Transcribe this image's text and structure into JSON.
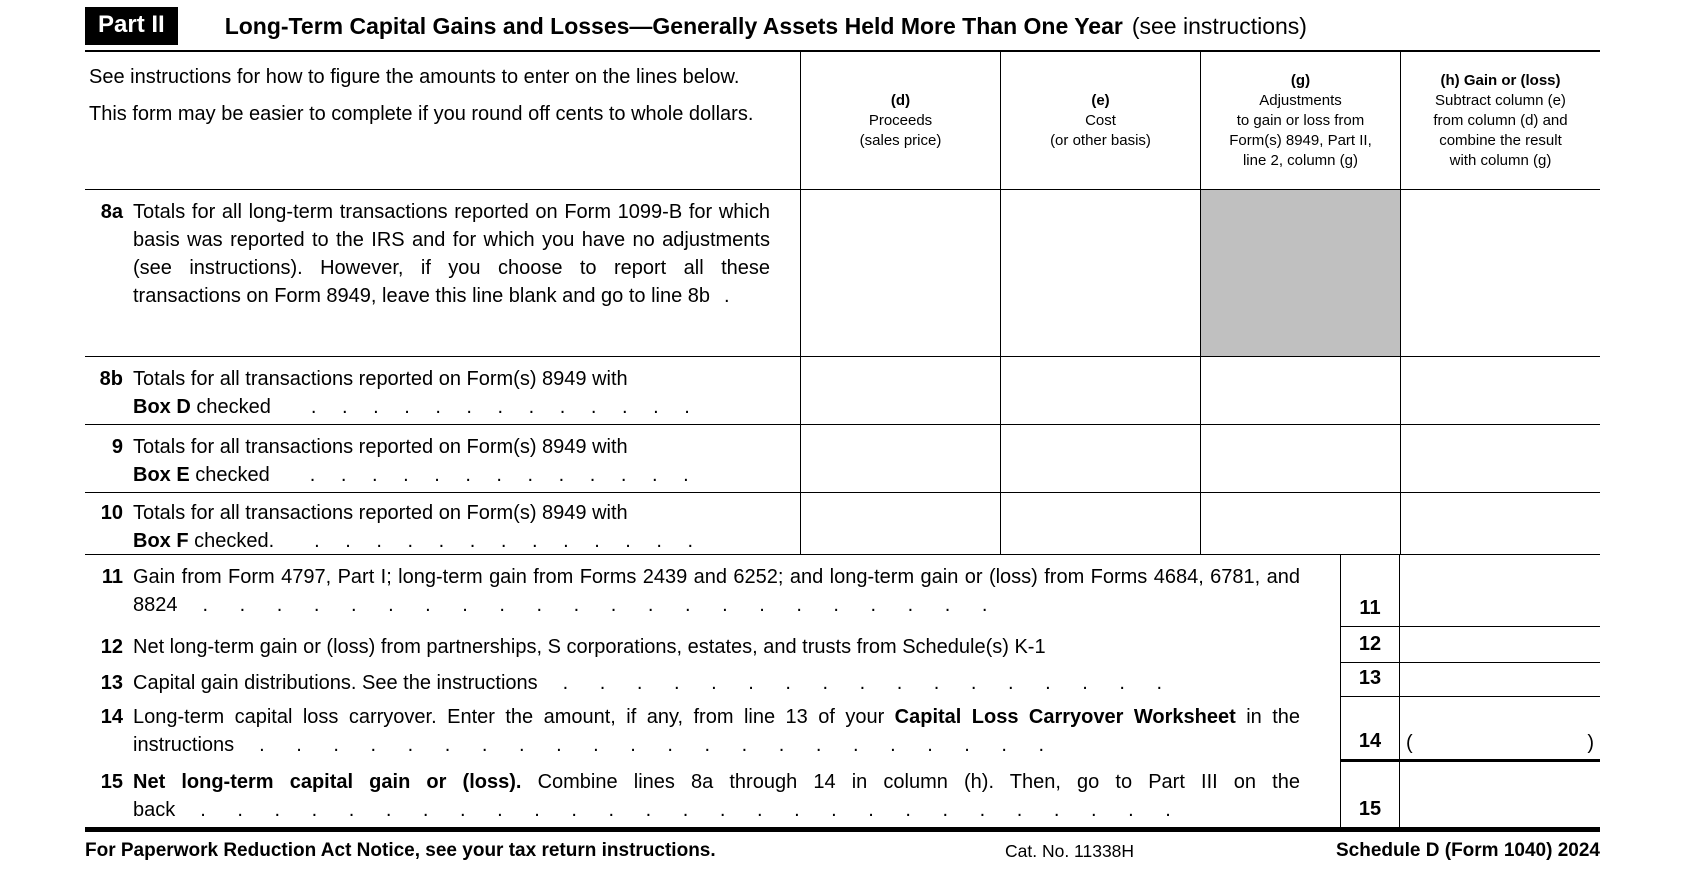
{
  "page": {
    "part_label": "Part II",
    "title": "Long-Term Capital Gains and Losses—Generally Assets Held More Than One Year",
    "title_suffix": "(see instructions)",
    "colors": {
      "shaded_cell": "#c0c0c0"
    },
    "table_header": {
      "instructions_p1": "See instructions for how to figure the amounts to enter on the lines below.",
      "instructions_p2": "This form may be easier to complete if you round off cents to whole dollars.",
      "col_d_bold": "(d)",
      "col_d_rest": "Proceeds\n(sales price)",
      "col_e_bold": "(e)",
      "col_e_rest": "Cost\n(or other basis)",
      "col_g_bold": "(g)",
      "col_g_rest": "Adjustments\nto gain or loss from\nForm(s) 8949, Part II,\nline 2, column (g)",
      "col_h_bold": "(h) Gain or (loss)",
      "col_h_rest": "Subtract column (e)\nfrom column (d) and\ncombine the result\nwith column (g)"
    },
    "row8a": {
      "num": "8a",
      "text": "Totals for all long-term transactions reported on Form 1099-B for which basis was reported to the IRS and for which you have no adjustments (see instructions). However, if you choose to report all these transactions on Form 8949, leave this line blank and go to line 8b",
      "dots": "."
    },
    "row8b": {
      "num": "8b",
      "line1": "Totals for all transactions reported on Form(s) 8949 with",
      "bold": "Box D",
      "line2": " checked",
      "dots": ". . . . . . . . . . . . ."
    },
    "row9": {
      "num": "9",
      "line1": "Totals for all transactions reported on Form(s) 8949 with",
      "bold": "Box E",
      "line2": " checked",
      "dots": ". . . . . . . . . . . . ."
    },
    "row10": {
      "num": "10",
      "line1": "Totals for all transactions reported on Form(s) 8949 with",
      "bold": "Box F",
      "line2": " checked.",
      "dots": ". . . . . . . . . . . . ."
    },
    "line11": {
      "num": "11",
      "text": "Gain from Form 4797, Part I; long-term gain from Forms 2439 and 6252; and long-term gain or (loss) from Forms 4684, 6781, and 8824",
      "dots": ". . . . . . . . . . . . . . . . . . . . . ."
    },
    "line12": {
      "num": "12",
      "text": "Net long-term gain or (loss) from partnerships, S corporations, estates, and trusts from Schedule(s) K-1"
    },
    "line13": {
      "num": "13",
      "text": "Capital gain distributions. See the instructions",
      "dots": ". . . . . . . . . . . . . . . . ."
    },
    "line14": {
      "num": "14",
      "pre": "Long-term capital loss carryover. Enter the amount, if any, from line 13 of your ",
      "bold": "Capital Loss Carryover Worksheet",
      "post": " in the instructions",
      "dots": ". . . . . . . . . . . . . . . . . . . . . .",
      "paren_open": "(",
      "paren_close": ")"
    },
    "line15": {
      "num": "15",
      "bold": "Net long-term capital gain or (loss).",
      "post": "  Combine lines 8a through 14 in column (h). Then, go to Part III on the back",
      "dots": ". . . . . . . . . . . . . . . . . . . . . . . . . . ."
    },
    "footer": {
      "left": "For Paperwork Reduction Act Notice, see your tax return instructions.",
      "center": "Cat. No. 11338H",
      "right": "Schedule D (Form 1040) 2024"
    }
  }
}
